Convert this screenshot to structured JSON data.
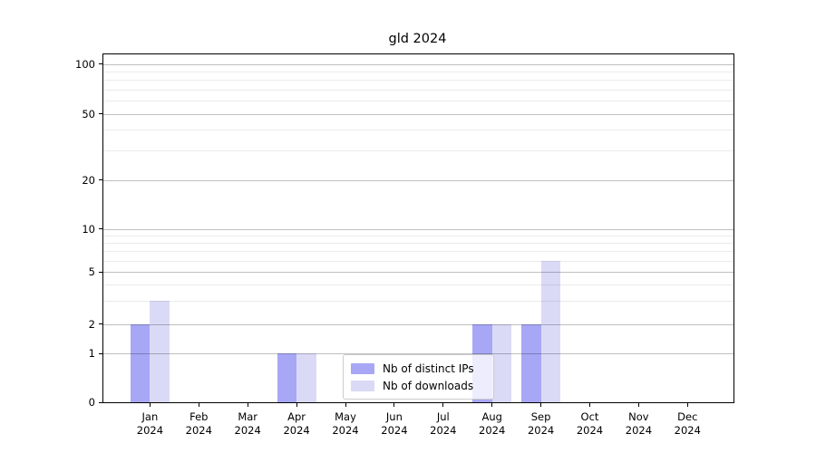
{
  "title": "gld 2024",
  "legend": {
    "items": [
      {
        "label": "Nb of distinct IPs",
        "color": "#a7a7f6"
      },
      {
        "label": "Nb of downloads",
        "color": "#dadaf7"
      }
    ]
  },
  "chart_data": {
    "type": "bar",
    "title": "gld 2024",
    "categories": [
      "Jan 2024",
      "Feb 2024",
      "Mar 2024",
      "Apr 2024",
      "May 2024",
      "Jun 2024",
      "Jul 2024",
      "Aug 2024",
      "Sep 2024",
      "Oct 2024",
      "Nov 2024",
      "Dec 2024"
    ],
    "series": [
      {
        "name": "Nb of distinct IPs",
        "color": "#a7a7f6",
        "values": [
          2,
          0,
          0,
          1,
          0,
          0,
          0,
          2,
          2,
          0,
          0,
          0
        ]
      },
      {
        "name": "Nb of downloads",
        "color": "#dadaf7",
        "values": [
          3,
          0,
          0,
          1,
          0,
          0,
          0,
          2,
          6,
          0,
          0,
          0
        ]
      }
    ],
    "xlabel": "",
    "ylabel": "",
    "yscale": "symlog",
    "yticks": [
      0,
      1,
      2,
      5,
      10,
      20,
      50,
      100
    ],
    "ylim": [
      0,
      115
    ],
    "grid": "on",
    "legend_position": "lower center"
  }
}
